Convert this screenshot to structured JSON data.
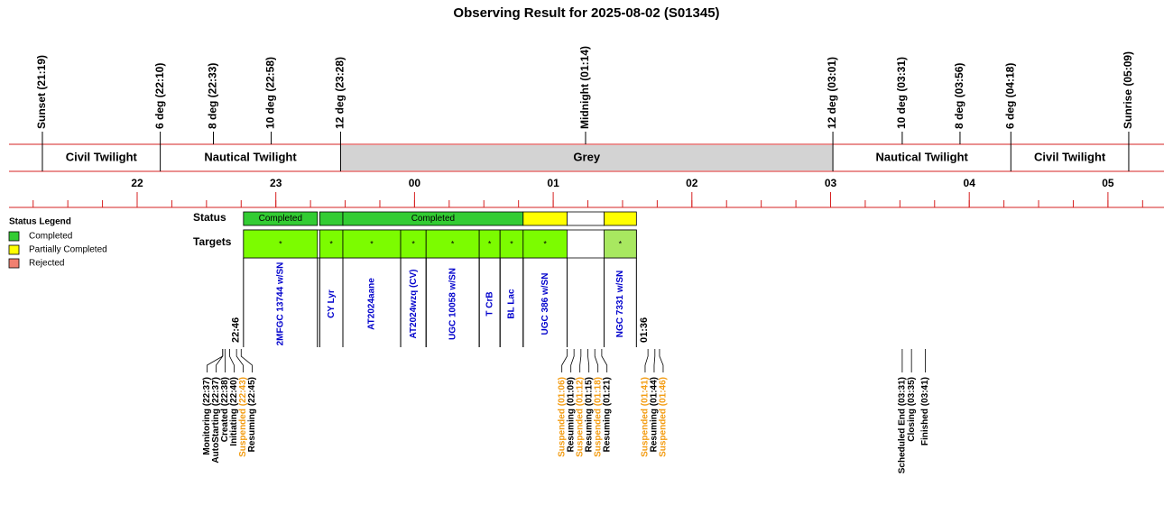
{
  "header": {
    "title": "Observing Result for 2025-08-02 (S01345)"
  },
  "sky_events": [
    "Sunset (21:19)",
    "6 deg (22:10)",
    "8 deg (22:33)",
    "10 deg (22:58)",
    "12 deg (23:28)",
    "Midnight (01:14)",
    "12 deg (03:01)",
    "10 deg (03:31)",
    "8 deg (03:56)",
    "6 deg (04:18)",
    "Sunrise (05:09)"
  ],
  "twilight_bands": [
    {
      "label": "Civil Twilight",
      "color": "#ffffff"
    },
    {
      "label": "Nautical Twilight",
      "color": "#ffffff"
    },
    {
      "label": "Grey",
      "color": "#d3d3d3"
    },
    {
      "label": "Nautical Twilight",
      "color": "#ffffff"
    },
    {
      "label": "Civil Twilight",
      "color": "#ffffff"
    }
  ],
  "hours": [
    "22",
    "23",
    "00",
    "01",
    "02",
    "03",
    "04",
    "05"
  ],
  "legend": {
    "title": "Status Legend",
    "items": [
      {
        "label": "Completed",
        "color": "#33cc33"
      },
      {
        "label": "Partially Completed",
        "color": "#ffff00"
      },
      {
        "label": "Rejected",
        "color": "#f08070"
      }
    ]
  },
  "status": {
    "label": "Status",
    "segments": [
      {
        "start": "22:46",
        "end": "23:18",
        "color": "#33cc33",
        "label": "Completed"
      },
      {
        "start": "23:19",
        "end": "23:29",
        "color": "#33cc33",
        "label": null
      },
      {
        "start": "23:29",
        "end": "00:47",
        "color": "#33cc33",
        "label": "Completed"
      },
      {
        "start": "00:47",
        "end": "01:06",
        "color": "#ffff00",
        "label": null
      },
      {
        "start": "01:06",
        "end": "01:22",
        "color": "#ffffff",
        "label": null
      },
      {
        "start": "01:22",
        "end": "01:36",
        "color": "#ffff00",
        "label": null
      }
    ]
  },
  "targets": {
    "label": "Targets",
    "items": [
      {
        "name": "2MFGC 13744 w/SN",
        "start": "22:46",
        "end": "23:18",
        "color": "#7cfc00",
        "mark": "*"
      },
      {
        "name": "CY Lyr",
        "start": "23:19",
        "end": "23:29",
        "color": "#7cfc00",
        "mark": "*"
      },
      {
        "name": "AT2024aane",
        "start": "23:29",
        "end": "23:54",
        "color": "#7cfc00",
        "mark": "*"
      },
      {
        "name": "AT2024wzq (CV)",
        "start": "23:54",
        "end": "00:05",
        "color": "#7cfc00",
        "mark": "*"
      },
      {
        "name": "UGC 10058 w/SN",
        "start": "00:05",
        "end": "00:28",
        "color": "#7cfc00",
        "mark": "*"
      },
      {
        "name": "T CrB",
        "start": "00:28",
        "end": "00:37",
        "color": "#7cfc00",
        "mark": "*"
      },
      {
        "name": "BL Lac",
        "start": "00:37",
        "end": "00:47",
        "color": "#7cfc00",
        "mark": "*"
      },
      {
        "name": "UGC 386 w/SN",
        "start": "00:47",
        "end": "01:06",
        "color": "#7cfc00",
        "mark": "*"
      },
      {
        "name": "NGC 7331 w/SN",
        "start": "01:22",
        "end": "01:36",
        "color": "#a8e860",
        "mark": "*"
      }
    ]
  },
  "log_events": [
    {
      "label": "Monitoring (22:37)",
      "color": "#000000"
    },
    {
      "label": "AutoStarting (22:37)",
      "color": "#000000"
    },
    {
      "label": "Created (22:38)",
      "color": "#000000"
    },
    {
      "label": "Initiating (22:40)",
      "color": "#000000"
    },
    {
      "label": "Suspended (22:43)",
      "color": "#f39c12"
    },
    {
      "label": "Resuming (22:45)",
      "color": "#000000"
    },
    {
      "label": "Suspended (01:06)",
      "color": "#f39c12"
    },
    {
      "label": "Resuming (01:09)",
      "color": "#000000"
    },
    {
      "label": "Suspended (01:12)",
      "color": "#f39c12"
    },
    {
      "label": "Resuming (01:15)",
      "color": "#000000"
    },
    {
      "label": "Suspended (01:18)",
      "color": "#f39c12"
    },
    {
      "label": "Resuming (01:21)",
      "color": "#000000"
    },
    {
      "label": "Suspended (01:41)",
      "color": "#f39c12"
    },
    {
      "label": "Resuming (01:44)",
      "color": "#000000"
    },
    {
      "label": "Suspended (01:46)",
      "color": "#f39c12"
    },
    {
      "label": "Scheduled End (03:31)",
      "color": "#000000"
    },
    {
      "label": "Closing (03:35)",
      "color": "#000000"
    },
    {
      "label": "Finished (03:41)",
      "color": "#000000"
    }
  ]
}
